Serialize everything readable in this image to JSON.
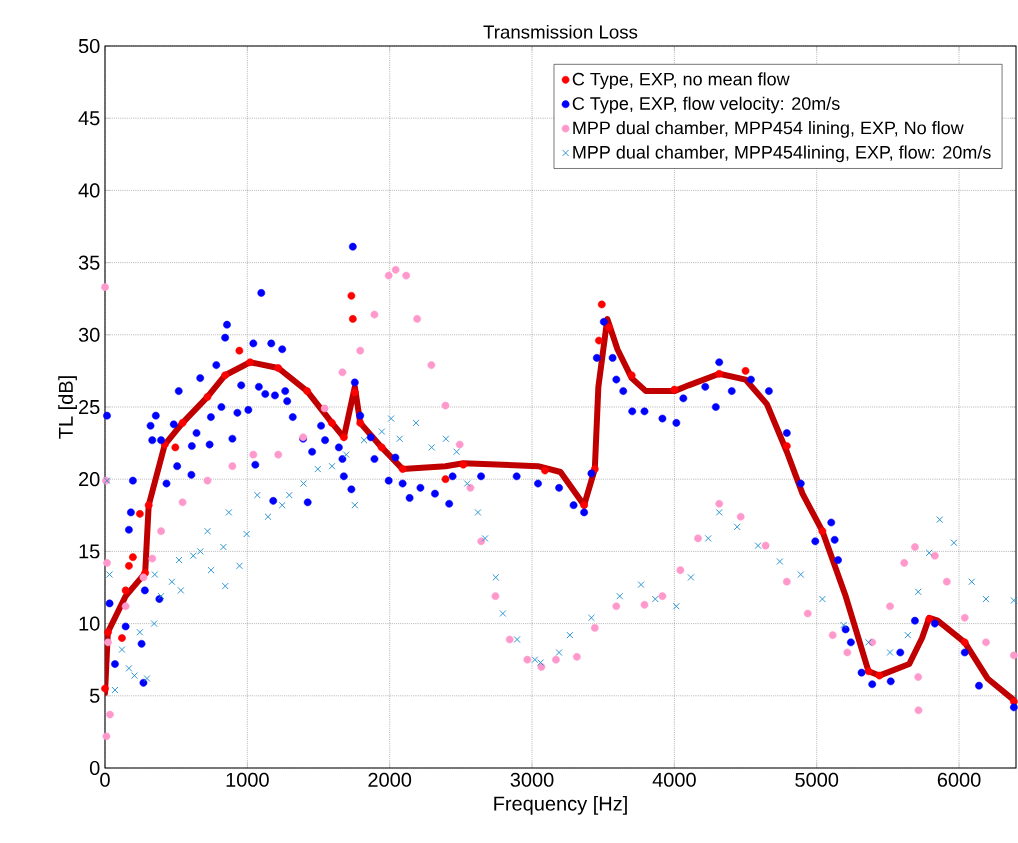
{
  "chart_data": {
    "type": "scatter",
    "title": "Transmission Loss",
    "xlabel": "Frequency [Hz]",
    "ylabel": "TL [dB]",
    "xlim": [
      0,
      6400
    ],
    "ylim": [
      0,
      50
    ],
    "xticks": [
      0,
      1000,
      2000,
      3000,
      4000,
      5000,
      6000
    ],
    "yticks": [
      0,
      5,
      10,
      15,
      20,
      25,
      30,
      35,
      40,
      45,
      50
    ],
    "grid": true,
    "legend": "top right",
    "marker": "circle",
    "series": [
      {
        "name": "C Type, EXP, no mean flow",
        "color": "#ff0000",
        "x": [
          0,
          21,
          119,
          145,
          168,
          196,
          245,
          282,
          307,
          420,
          494,
          545,
          720,
          844,
          944,
          1019,
          1217,
          1420,
          1594,
          1678,
          1731,
          1741,
          1755,
          1793,
          1944,
          2091,
          2392,
          2517,
          3091,
          3366,
          3441,
          3470,
          3490,
          3540,
          3700,
          4000,
          4315,
          4500,
          4790,
          5040,
          5364,
          5440,
          5790,
          6040,
          6385
        ],
        "values": [
          5.5,
          9.4,
          9.0,
          12.3,
          14.0,
          14.6,
          17.6,
          13.5,
          18.2,
          22.4,
          22.2,
          23.9,
          25.7,
          27.2,
          28.9,
          28.1,
          27.7,
          26.1,
          23.9,
          22.9,
          32.7,
          31.1,
          26.0,
          23.9,
          22.2,
          20.7,
          20.0,
          21.0,
          20.6,
          18.2,
          20.7,
          29.6,
          32.1,
          30.5,
          27.2,
          26.2,
          27.3,
          27.5,
          22.3,
          16.4,
          6.7,
          6.4,
          10.3,
          8.7,
          4.6
        ]
      },
      {
        "name": "C Type, EXP, flow velocity: 20m/s",
        "color": "#0000ff",
        "x": [
          14,
          32,
          70,
          145,
          168,
          182,
          196,
          257,
          270,
          280,
          320,
          332,
          357,
          382,
          394,
          432,
          483,
          507,
          518,
          607,
          610,
          643,
          669,
          735,
          744,
          782,
          818,
          844,
          857,
          895,
          930,
          957,
          1007,
          1042,
          1056,
          1081,
          1098,
          1126,
          1168,
          1182,
          1194,
          1245,
          1266,
          1280,
          1319,
          1392,
          1424,
          1455,
          1518,
          1546,
          1643,
          1668,
          1678,
          1731,
          1741,
          1755,
          1793,
          1867,
          1893,
          1993,
          2040,
          2091,
          2140,
          2216,
          2318,
          2418,
          2442,
          2642,
          2892,
          3042,
          3190,
          3292,
          3366,
          3417,
          3455,
          3504,
          3566,
          3592,
          3641,
          3704,
          3790,
          3916,
          4014,
          4063,
          4217,
          4291,
          4315,
          4403,
          4538,
          4664,
          4790,
          4888,
          4990,
          5102,
          5126,
          5150,
          5203,
          5240,
          5315,
          5390,
          5520,
          5587,
          5690,
          5830,
          6040,
          6140,
          6385
        ],
        "values": [
          24.4,
          11.4,
          7.2,
          9.8,
          16.5,
          17.7,
          19.9,
          8.6,
          5.9,
          12.3,
          23.7,
          22.7,
          24.4,
          11.7,
          22.7,
          19.7,
          23.8,
          20.9,
          26.1,
          20.3,
          22.3,
          23.2,
          27.0,
          22.4,
          24.3,
          27.9,
          25.0,
          29.8,
          30.7,
          22.8,
          24.6,
          26.5,
          24.8,
          29.4,
          21.0,
          26.4,
          32.9,
          25.9,
          29.4,
          18.5,
          25.8,
          29.0,
          26.1,
          25.4,
          24.3,
          22.8,
          18.4,
          21.9,
          23.7,
          22.7,
          22.2,
          21.4,
          20.2,
          19.3,
          36.1,
          26.7,
          24.4,
          22.9,
          21.4,
          19.9,
          21.5,
          19.7,
          18.7,
          19.4,
          19.0,
          18.3,
          20.2,
          20.2,
          20.2,
          19.7,
          19.4,
          18.2,
          17.7,
          20.4,
          28.4,
          30.9,
          28.4,
          26.9,
          26.1,
          24.7,
          24.7,
          24.2,
          23.9,
          25.6,
          26.4,
          25.0,
          28.1,
          26.1,
          26.9,
          26.1,
          23.2,
          19.7,
          15.7,
          17.0,
          15.8,
          14.4,
          9.6,
          8.7,
          6.6,
          5.8,
          6.0,
          8.0,
          10.2,
          10.0,
          8.0,
          5.7,
          4.2
        ]
      },
      {
        "name": "MPP dual chamber, MPP454 lining, EXP, No flow",
        "color": "#ff99cc",
        "x": [
          0,
          7,
          10,
          14,
          21,
          35,
          145,
          270,
          332,
          394,
          545,
          720,
          895,
          1042,
          1217,
          1392,
          1543,
          1668,
          1793,
          1893,
          1993,
          2042,
          2116,
          2193,
          2293,
          2392,
          2492,
          2567,
          2643,
          2743,
          2843,
          2967,
          3066,
          3168,
          3315,
          3441,
          3592,
          3790,
          3916,
          4042,
          4166,
          4315,
          4466,
          4641,
          4790,
          4937,
          5112,
          5215,
          5390,
          5515,
          5615,
          5690,
          5713,
          5715,
          5830,
          5914,
          6040,
          6189,
          6385
        ],
        "values": [
          33.3,
          19.9,
          2.2,
          14.2,
          8.7,
          3.7,
          11.2,
          13.2,
          14.5,
          16.4,
          18.4,
          19.9,
          20.9,
          21.7,
          21.7,
          22.9,
          24.9,
          27.4,
          28.9,
          31.4,
          34.1,
          34.5,
          34.1,
          31.1,
          27.9,
          25.1,
          22.4,
          19.4,
          15.7,
          11.9,
          8.9,
          7.5,
          7.0,
          7.5,
          7.7,
          9.7,
          11.2,
          11.3,
          11.9,
          13.7,
          15.9,
          18.3,
          17.4,
          15.4,
          12.9,
          10.7,
          9.2,
          8.0,
          8.7,
          11.2,
          14.2,
          15.3,
          6.3,
          4.0,
          14.7,
          12.9,
          10.4,
          8.7,
          7.8
        ]
      },
      {
        "name": "MPP dual chamber, MPP454lining, EXP, flow: 20m/s",
        "color": "#1f8fd0",
        "marker": "cross",
        "x": [
          14,
          32,
          70,
          119,
          168,
          207,
          245,
          295,
          345,
          350,
          394,
          470,
          520,
          533,
          620,
          670,
          720,
          745,
          832,
          845,
          870,
          945,
          995,
          1070,
          1145,
          1245,
          1295,
          1395,
          1495,
          1595,
          1695,
          1755,
          1820,
          1945,
          2010,
          2070,
          2185,
          2295,
          2395,
          2470,
          2545,
          2620,
          2670,
          2745,
          2795,
          2895,
          3020,
          3060,
          3190,
          3266,
          3417,
          3616,
          3766,
          3866,
          4014,
          4116,
          4238,
          4315,
          4441,
          4588,
          4741,
          4888,
          5040,
          5189,
          5364,
          5515,
          5640,
          5713,
          5790,
          5864,
          5964,
          6089,
          6189,
          6385
        ],
        "values": [
          19.9,
          13.4,
          5.4,
          8.2,
          6.9,
          6.4,
          9.4,
          6.2,
          10.0,
          13.4,
          11.9,
          12.9,
          14.4,
          12.3,
          14.7,
          15.0,
          16.4,
          13.7,
          15.3,
          12.6,
          17.7,
          14.0,
          16.2,
          18.9,
          17.4,
          18.2,
          18.9,
          19.7,
          20.7,
          20.9,
          21.7,
          18.2,
          22.7,
          23.3,
          24.2,
          22.8,
          23.9,
          22.2,
          22.8,
          21.9,
          19.7,
          17.7,
          15.9,
          13.2,
          10.7,
          8.9,
          7.5,
          7.3,
          8.0,
          9.2,
          10.4,
          11.9,
          12.7,
          11.7,
          11.2,
          13.2,
          15.9,
          17.7,
          16.7,
          15.4,
          14.3,
          13.4,
          11.7,
          9.9,
          8.7,
          8.0,
          9.2,
          12.2,
          14.9,
          17.2,
          15.6,
          12.9,
          11.7,
          11.6
        ]
      },
      {
        "type": "line",
        "color": "#c00000",
        "marker": "none",
        "line_style": "solid",
        "x": [
          0,
          20,
          145,
          282,
          307,
          420,
          545,
          720,
          844,
          1019,
          1217,
          1420,
          1594,
          1678,
          1755,
          1793,
          1944,
          2091,
          2392,
          2517,
          3042,
          3200,
          3366,
          3441,
          3466,
          3529,
          3600,
          3700,
          3800,
          4000,
          4100,
          4315,
          4500,
          4650,
          4790,
          4900,
          5040,
          5200,
          5364,
          5440,
          5650,
          5740,
          5790,
          5850,
          6040,
          6200,
          6385
        ],
        "values": [
          5.2,
          9.4,
          11.9,
          13.5,
          18.2,
          22.4,
          23.9,
          25.7,
          27.2,
          28.1,
          27.7,
          26.1,
          23.9,
          22.9,
          26.4,
          23.9,
          22.2,
          20.7,
          20.9,
          21.1,
          20.9,
          20.5,
          18.2,
          20.7,
          26.4,
          31.1,
          29.0,
          27.0,
          26.1,
          26.1,
          26.5,
          27.3,
          26.9,
          25.2,
          21.9,
          19.0,
          16.4,
          12.0,
          6.7,
          6.4,
          7.2,
          9.0,
          10.4,
          10.2,
          8.7,
          6.2,
          4.7
        ]
      }
    ]
  }
}
